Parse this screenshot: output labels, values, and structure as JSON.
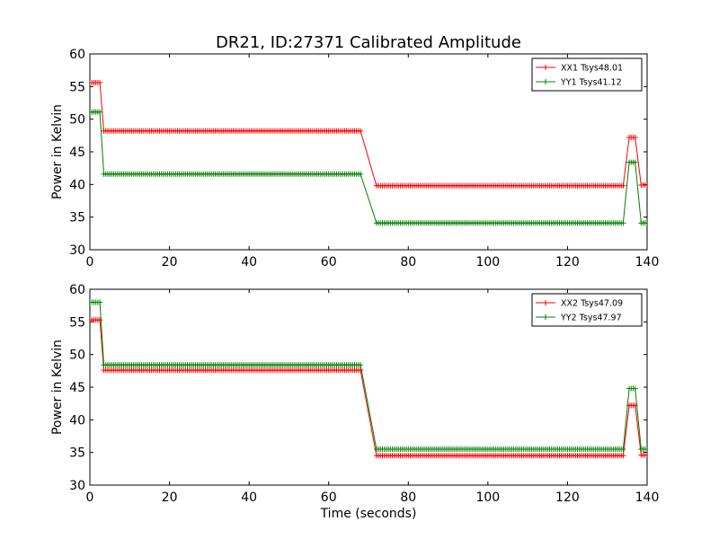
{
  "figure": {
    "title": "DR21, ID:27371 Calibrated Amplitude",
    "xlabel": "Time (seconds)"
  },
  "chart_data": [
    {
      "type": "line",
      "title": "DR21, ID:27371 Calibrated Amplitude",
      "xlabel": "",
      "ylabel": "Power in Kelvin",
      "xlim": [
        0,
        140
      ],
      "ylim": [
        30,
        60
      ],
      "xticks": [
        0,
        20,
        40,
        60,
        80,
        100,
        120,
        140
      ],
      "yticks": [
        30,
        35,
        40,
        45,
        50,
        55,
        60
      ],
      "xtick_labels": [
        "0",
        "20",
        "40",
        "60",
        "80",
        "100",
        "120",
        "140"
      ],
      "ytick_labels": [
        "30",
        "35",
        "40",
        "45",
        "50",
        "55",
        "60"
      ],
      "legend_position": "top-right",
      "grid": false,
      "marker": "plus",
      "sample_interval": 0.5,
      "series": [
        {
          "name": "XX1 Tsys48.01",
          "color": "#ff0000",
          "segments": [
            {
              "x": [
                0,
                2.5
              ],
              "y": [
                55.6,
                55.6
              ]
            },
            {
              "x": [
                3.5,
                68
              ],
              "y": [
                48.2,
                48.2
              ]
            },
            {
              "x": [
                72,
                134
              ],
              "y": [
                39.8,
                39.8
              ]
            },
            {
              "x": [
                135.5,
                137
              ],
              "y": [
                47.2,
                47.2
              ]
            },
            {
              "x": [
                138.5,
                140
              ],
              "y": [
                39.9,
                39.9
              ]
            }
          ]
        },
        {
          "name": "YY1 Tsys41.12",
          "color": "#008000",
          "segments": [
            {
              "x": [
                0,
                2.5
              ],
              "y": [
                51.1,
                51.1
              ]
            },
            {
              "x": [
                3.5,
                68
              ],
              "y": [
                41.6,
                41.6
              ]
            },
            {
              "x": [
                72,
                134
              ],
              "y": [
                34.1,
                34.1
              ]
            },
            {
              "x": [
                135.5,
                137
              ],
              "y": [
                43.4,
                43.4
              ]
            },
            {
              "x": [
                138.5,
                140
              ],
              "y": [
                34.1,
                34.1
              ]
            }
          ]
        }
      ]
    },
    {
      "type": "line",
      "title": "",
      "xlabel": "Time (seconds)",
      "ylabel": "Power in Kelvin",
      "xlim": [
        0,
        140
      ],
      "ylim": [
        30,
        60
      ],
      "xticks": [
        0,
        20,
        40,
        60,
        80,
        100,
        120,
        140
      ],
      "yticks": [
        30,
        35,
        40,
        45,
        50,
        55,
        60
      ],
      "xtick_labels": [
        "0",
        "20",
        "40",
        "60",
        "80",
        "100",
        "120",
        "140"
      ],
      "ytick_labels": [
        "30",
        "35",
        "40",
        "45",
        "50",
        "55",
        "60"
      ],
      "legend_position": "top-right",
      "grid": false,
      "marker": "plus",
      "sample_interval": 0.5,
      "series": [
        {
          "name": "XX2 Tsys47.09",
          "color": "#ff0000",
          "segments": [
            {
              "x": [
                0,
                2.5
              ],
              "y": [
                55.3,
                55.3
              ]
            },
            {
              "x": [
                3.5,
                68
              ],
              "y": [
                47.6,
                47.6
              ]
            },
            {
              "x": [
                72,
                134
              ],
              "y": [
                34.5,
                34.5
              ]
            },
            {
              "x": [
                135.5,
                137
              ],
              "y": [
                42.2,
                42.2
              ]
            },
            {
              "x": [
                138.5,
                140
              ],
              "y": [
                34.6,
                34.6
              ]
            }
          ]
        },
        {
          "name": "YY2 Tsys47.97",
          "color": "#008000",
          "segments": [
            {
              "x": [
                0,
                2.5
              ],
              "y": [
                58.0,
                58.0
              ]
            },
            {
              "x": [
                3.5,
                68
              ],
              "y": [
                48.4,
                48.4
              ]
            },
            {
              "x": [
                72,
                134
              ],
              "y": [
                35.5,
                35.5
              ]
            },
            {
              "x": [
                135.5,
                137
              ],
              "y": [
                44.8,
                44.8
              ]
            },
            {
              "x": [
                138.5,
                140
              ],
              "y": [
                35.5,
                35.5
              ]
            }
          ]
        }
      ]
    }
  ]
}
